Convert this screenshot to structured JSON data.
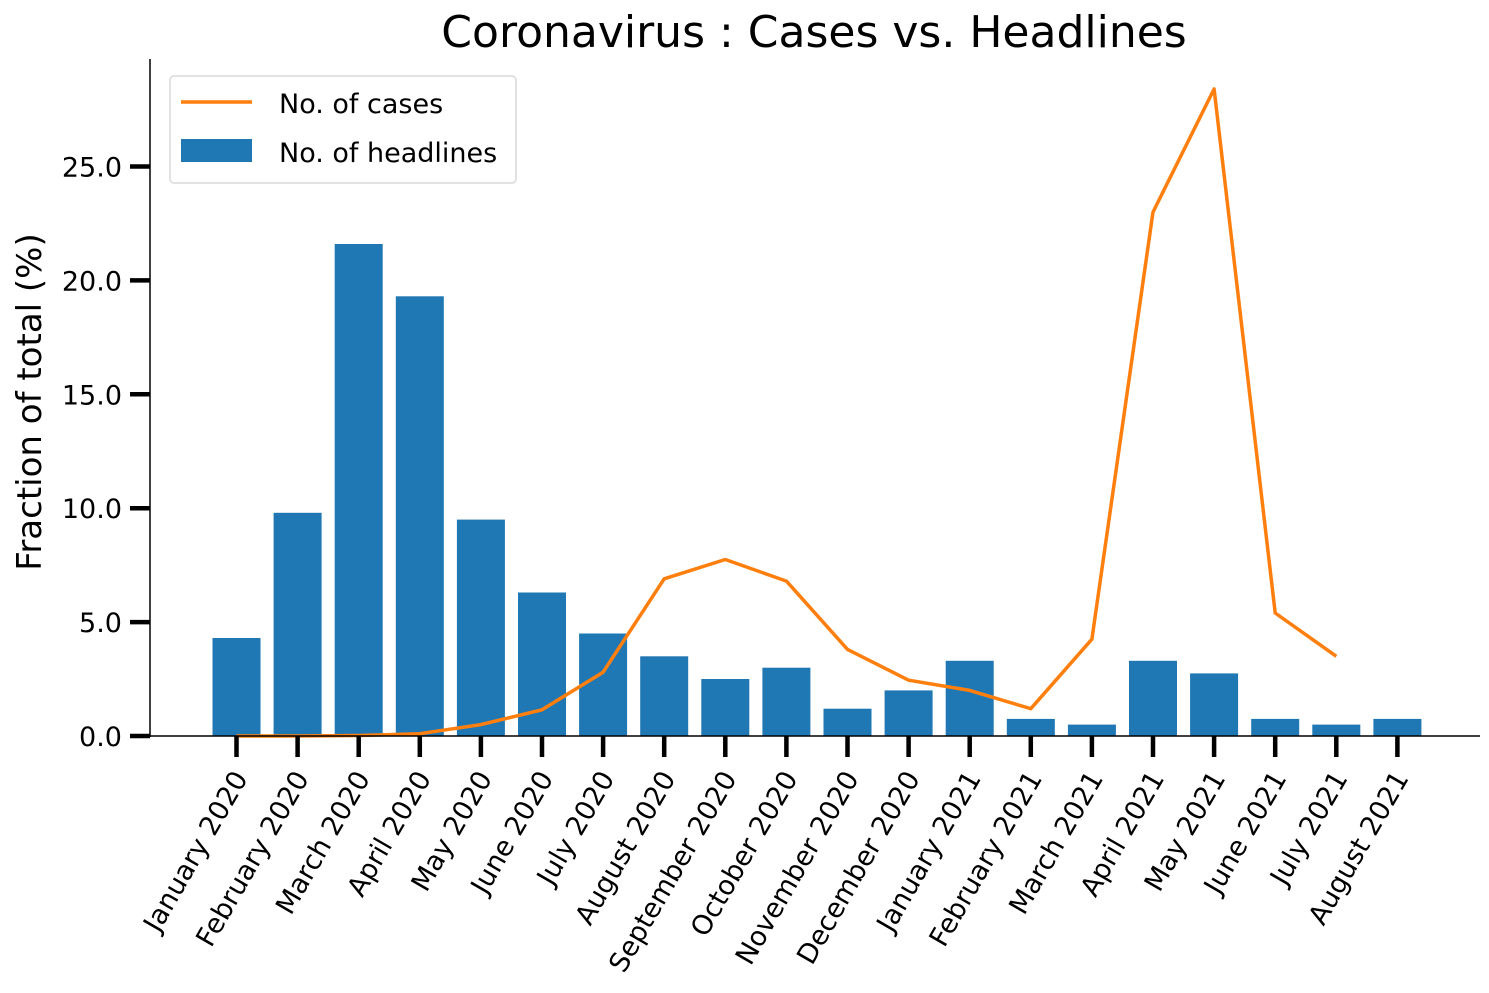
{
  "chart_data": {
    "type": "bar",
    "title": "Coronavirus : Cases vs. Headlines",
    "xlabel": "",
    "ylabel": "Fraction of total (%)",
    "ylim": [
      0,
      29.7
    ],
    "yticks": [
      "0.0",
      "5.0",
      "10.0",
      "15.0",
      "20.0",
      "25.0"
    ],
    "ytick_values": [
      0,
      5,
      10,
      15,
      20,
      25
    ],
    "grid": false,
    "legend_position": "top-left",
    "categories": [
      "January 2020",
      "February 2020",
      "March 2020",
      "April 2020",
      "May 2020",
      "June 2020",
      "July 2020",
      "August 2020",
      "September 2020",
      "October 2020",
      "November 2020",
      "December 2020",
      "January 2021",
      "February 2021",
      "March 2021",
      "April 2021",
      "May 2021",
      "June 2021",
      "July 2021",
      "August 2021"
    ],
    "series": [
      {
        "name": "No. of headlines",
        "kind": "bar",
        "color": "#1f77b4",
        "values": [
          4.3,
          9.8,
          21.6,
          19.3,
          9.5,
          6.3,
          4.5,
          3.5,
          2.5,
          3.0,
          1.2,
          2.0,
          3.3,
          0.75,
          0.5,
          3.3,
          2.75,
          0.75,
          0.5,
          0.75
        ]
      },
      {
        "name": "No. of cases",
        "kind": "line",
        "color": "#ff7f0e",
        "values": [
          0.0,
          0.0,
          0.02,
          0.1,
          0.5,
          1.15,
          2.8,
          6.9,
          7.75,
          6.8,
          3.8,
          2.45,
          2.0,
          1.2,
          4.25,
          23.0,
          28.4,
          5.4,
          3.5,
          null
        ]
      }
    ]
  }
}
